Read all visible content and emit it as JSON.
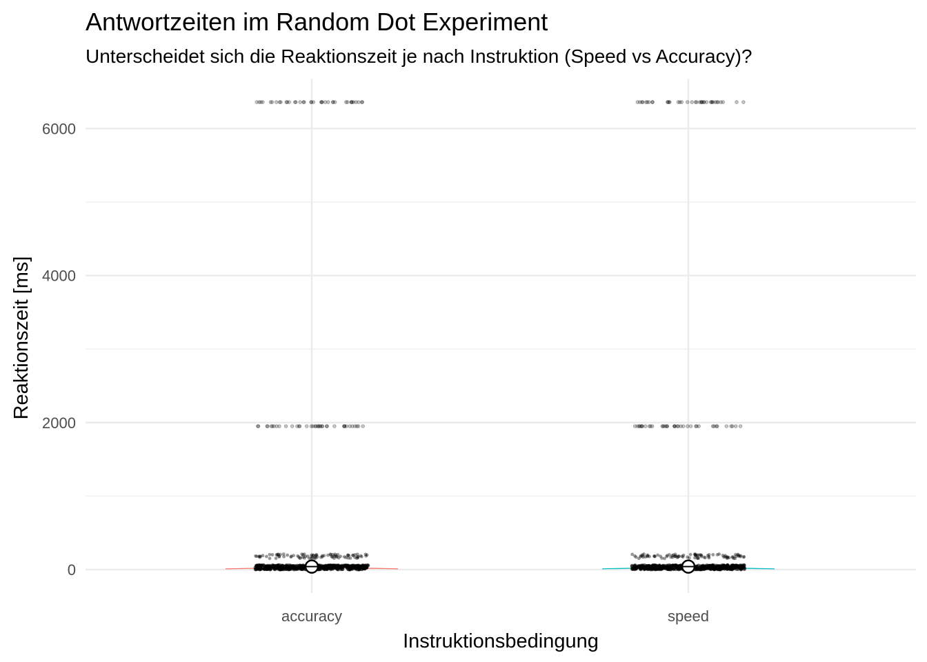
{
  "chart_data": {
    "type": "scatter",
    "title": "Antwortzeiten im Random Dot Experiment",
    "subtitle": "Unterscheidet sich die Reaktionszeit je nach Instruktion (Speed vs Accuracy)?",
    "xlabel": "Instruktionsbedingung",
    "ylabel": "Reaktionszeit [ms]",
    "categories": [
      "accuracy",
      "speed"
    ],
    "ylim": [
      -320,
      6680
    ],
    "yticks": [
      0,
      2000,
      4000,
      6000
    ],
    "yticks_minor": [
      1000,
      3000,
      5000
    ],
    "grid": true,
    "legend": "none",
    "colors": {
      "accuracy": "#F8766D",
      "speed": "#00BFC4",
      "points": "#000000",
      "grid": "#ebebeb",
      "mean_marker_fill": "#ffffff"
    },
    "series": [
      {
        "category": "accuracy",
        "means": 40,
        "dense_band": [
          0,
          60
        ],
        "sparse_band": [
          150,
          210
        ],
        "outlier_rows": [
          1950,
          6360
        ]
      },
      {
        "category": "speed",
        "means": 40,
        "dense_band": [
          0,
          60
        ],
        "sparse_band": [
          150,
          210
        ],
        "outlier_rows": [
          1950,
          6360
        ]
      }
    ]
  }
}
